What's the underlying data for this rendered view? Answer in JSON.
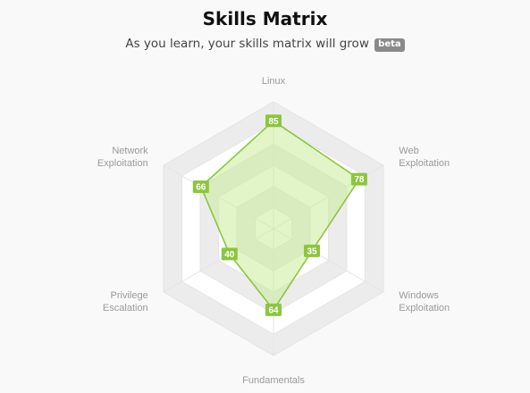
{
  "header": {
    "title": "Skills Matrix",
    "subtitle": "As you learn, your skills matrix will grow",
    "badge": "beta"
  },
  "colors": {
    "series": "#8cc63f",
    "fill": "#c9ec9a",
    "grid_band": "#ececec"
  },
  "chart_data": {
    "type": "radar",
    "axes": [
      {
        "lines": [
          "Linux"
        ]
      },
      {
        "lines": [
          "Web",
          "Exploitation"
        ]
      },
      {
        "lines": [
          "Windows",
          "Exploitation"
        ]
      },
      {
        "lines": [
          "Fundamentals"
        ]
      },
      {
        "lines": [
          "Privilege",
          "Escalation"
        ]
      },
      {
        "lines": [
          "Network",
          "Exploitation"
        ]
      }
    ],
    "values": [
      85,
      78,
      35,
      64,
      40,
      66
    ],
    "range": [
      0,
      100
    ],
    "grid_levels": 6
  }
}
